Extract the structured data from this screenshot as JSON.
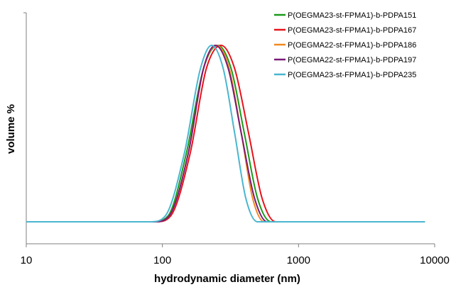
{
  "chart_data": {
    "type": "line",
    "title": "",
    "xlabel": "hydrodynamic diameter (nm)",
    "ylabel": "volume %",
    "x_scale": "log",
    "xlim": [
      10,
      10000
    ],
    "x_ticks": [
      "10",
      "100",
      "1000",
      "10000"
    ],
    "y_ticks_shown": false,
    "grid": false,
    "legend_position": "top-right",
    "baseline_level": 0.1,
    "series": [
      {
        "name": "P(OEGMA23-st-FPMA1)-b-PDPA151",
        "color": "#1a9a1a",
        "x": [
          10,
          85,
          110,
          150,
          200,
          255,
          320,
          400,
          500,
          630,
          800,
          7500
        ],
        "y": [
          0.1,
          0.1,
          0.13,
          0.45,
          0.88,
          1.0,
          0.88,
          0.55,
          0.22,
          0.1,
          0.1,
          0.1
        ]
      },
      {
        "name": "P(OEGMA23-st-FPMA1)-b-PDPA167",
        "color": "#e8121a",
        "x": [
          10,
          90,
          115,
          160,
          210,
          270,
          340,
          430,
          540,
          680,
          820,
          7500
        ],
        "y": [
          0.1,
          0.1,
          0.13,
          0.45,
          0.88,
          1.0,
          0.88,
          0.55,
          0.22,
          0.1,
          0.1,
          0.1
        ]
      },
      {
        "name": "P(OEGMA22-st-FPMA1)-b-PDPA186",
        "color": "#f08a22",
        "x": [
          10,
          88,
          112,
          155,
          200,
          250,
          310,
          380,
          460,
          560,
          700,
          7500
        ],
        "y": [
          0.1,
          0.1,
          0.13,
          0.45,
          0.88,
          1.0,
          0.88,
          0.55,
          0.22,
          0.1,
          0.1,
          0.1
        ]
      },
      {
        "name": "P(OEGMA22-st-FPMA1)-b-PDPA197",
        "color": "#7a1a78",
        "x": [
          10,
          88,
          112,
          155,
          200,
          245,
          305,
          380,
          475,
          590,
          740,
          7500
        ],
        "y": [
          0.1,
          0.1,
          0.13,
          0.45,
          0.88,
          1.0,
          0.88,
          0.55,
          0.22,
          0.1,
          0.1,
          0.1
        ]
      },
      {
        "name": "P(OEGMA23-st-FPMA1)-b-PDPA235",
        "color": "#49b6cf",
        "x": [
          10,
          82,
          105,
          145,
          190,
          230,
          280,
          340,
          410,
          500,
          600,
          8500
        ],
        "y": [
          0.1,
          0.1,
          0.13,
          0.45,
          0.88,
          1.0,
          0.88,
          0.55,
          0.22,
          0.1,
          0.1,
          0.1
        ]
      }
    ]
  }
}
